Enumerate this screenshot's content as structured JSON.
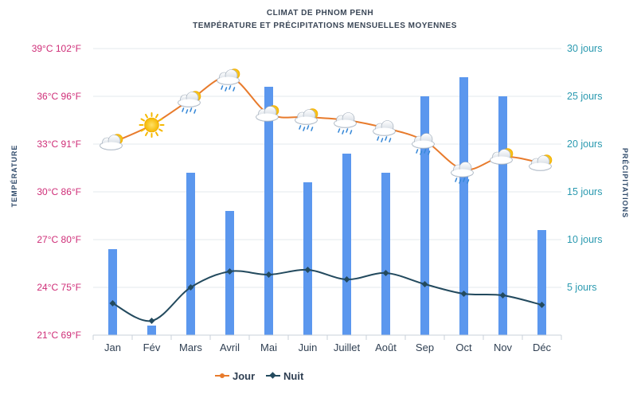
{
  "chart_data": {
    "type": "bar+line",
    "title": "CLIMAT DE PHNOM PENH",
    "subtitle": "TEMPÉRATURE ET PRÉCIPITATIONS MENSUELLES MOYENNES",
    "categories": [
      "Jan",
      "Fév",
      "Mars",
      "Avril",
      "Mai",
      "Juin",
      "Juillet",
      "Août",
      "Sep",
      "Oct",
      "Nov",
      "Déc"
    ],
    "y_left": {
      "label": "TEMPÉRATURE",
      "unit": "°C",
      "ylim": [
        21,
        39
      ],
      "ticks": [
        "21°C 69°F",
        "24°C 75°F",
        "27°C 80°F",
        "30°C 86°F",
        "33°C 91°F",
        "36°C 96°F",
        "39°C 102°F"
      ],
      "color": "#cf2e78"
    },
    "y_right": {
      "label": "PRÉCIPITATIONS",
      "unit": "jours",
      "ylim": [
        0,
        30
      ],
      "ticks": [
        "5 jours",
        "10 jours",
        "15 jours",
        "20 jours",
        "25 jours",
        "30 jours"
      ],
      "color": "#2b9ab0"
    },
    "series": [
      {
        "name": "Précipitations",
        "type": "bar",
        "axis": "right",
        "color": "#5b97ee",
        "values": [
          9,
          1,
          17,
          13,
          26,
          16,
          19,
          17,
          25,
          27,
          25,
          11
        ]
      },
      {
        "name": "Jour",
        "type": "line",
        "axis": "left",
        "color": "#e87b2c",
        "values": [
          33.1,
          34.2,
          35.8,
          37.2,
          34.9,
          34.7,
          34.5,
          34.0,
          33.2,
          31.4,
          32.2,
          31.8
        ]
      },
      {
        "name": "Nuit",
        "type": "line",
        "axis": "left",
        "color": "#234a5e",
        "values": [
          23.0,
          21.9,
          24.0,
          25.0,
          24.8,
          25.1,
          24.5,
          24.9,
          24.2,
          23.6,
          23.5,
          22.9
        ]
      }
    ],
    "weather_icons": [
      "partly-cloudy-icon",
      "sun-icon",
      "cloud-sun-rain-icon",
      "cloud-sun-rain-icon",
      "cloud-sun-icon",
      "cloud-sun-rain-icon",
      "cloud-rain-icon",
      "cloud-rain-icon",
      "cloud-rain-icon",
      "cloud-rain-icon",
      "cloud-sun-icon",
      "partly-cloudy-icon"
    ],
    "legend": {
      "position": "bottom",
      "items": [
        {
          "label": "Jour",
          "color": "#e87b2c"
        },
        {
          "label": "Nuit",
          "color": "#234a5e"
        }
      ]
    },
    "grid": true
  }
}
